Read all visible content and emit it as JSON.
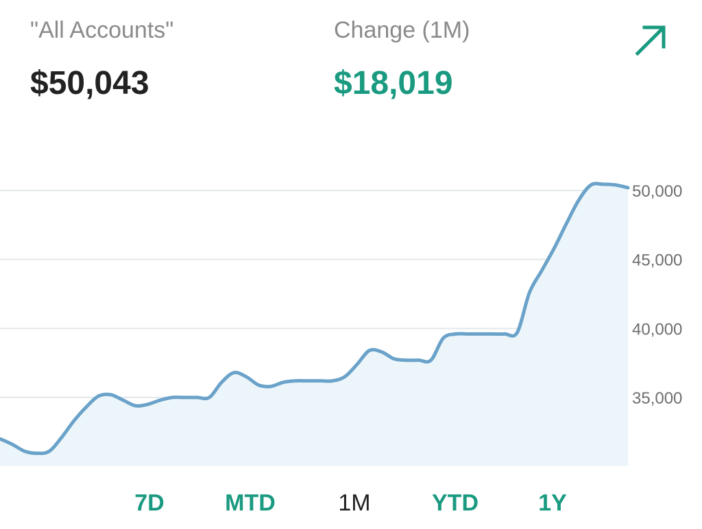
{
  "header": {
    "account_label": "\"All Accounts\"",
    "account_value": "$50,043",
    "change_label": "Change (1M)",
    "change_value": "$18,019",
    "trend_icon": "arrow-up-right-icon"
  },
  "colors": {
    "accent": "#1a9a80",
    "line": "#6aa2c9",
    "fill": "#ecf5f9",
    "grid": "#e3e7ea",
    "text_dark": "#222222",
    "text_muted": "#8a8a8a",
    "selected_range": "#222222"
  },
  "ranges": [
    {
      "label": "7D",
      "selected": false
    },
    {
      "label": "MTD",
      "selected": false
    },
    {
      "label": "1M",
      "selected": true
    },
    {
      "label": "YTD",
      "selected": false
    },
    {
      "label": "1Y",
      "selected": false
    }
  ],
  "chart_data": {
    "type": "area",
    "title": "",
    "xlabel": "",
    "ylabel": "",
    "ylim": [
      30000,
      50000
    ],
    "yticks": [
      35000,
      40000,
      45000,
      50000
    ],
    "ytick_labels": [
      "35,000",
      "40,000",
      "45,000",
      "50,000"
    ],
    "grid": true,
    "axis_position": "right",
    "series": [
      {
        "values": [
          32000,
          31600,
          31100,
          30950,
          31100,
          32100,
          33300,
          34300,
          35100,
          35200,
          34800,
          34400,
          34500,
          34800,
          35000,
          35000,
          35000,
          35000,
          36100,
          36800,
          36500,
          35900,
          35800,
          36100,
          36200,
          36200,
          36200,
          36200,
          36500,
          37400,
          38400,
          38300,
          37800,
          37700,
          37700,
          37700,
          39300,
          39600,
          39600,
          39600,
          39600,
          39600,
          39700,
          42600,
          44200,
          45800,
          47600,
          49300,
          50400,
          50450,
          50400,
          50200
        ]
      }
    ]
  }
}
